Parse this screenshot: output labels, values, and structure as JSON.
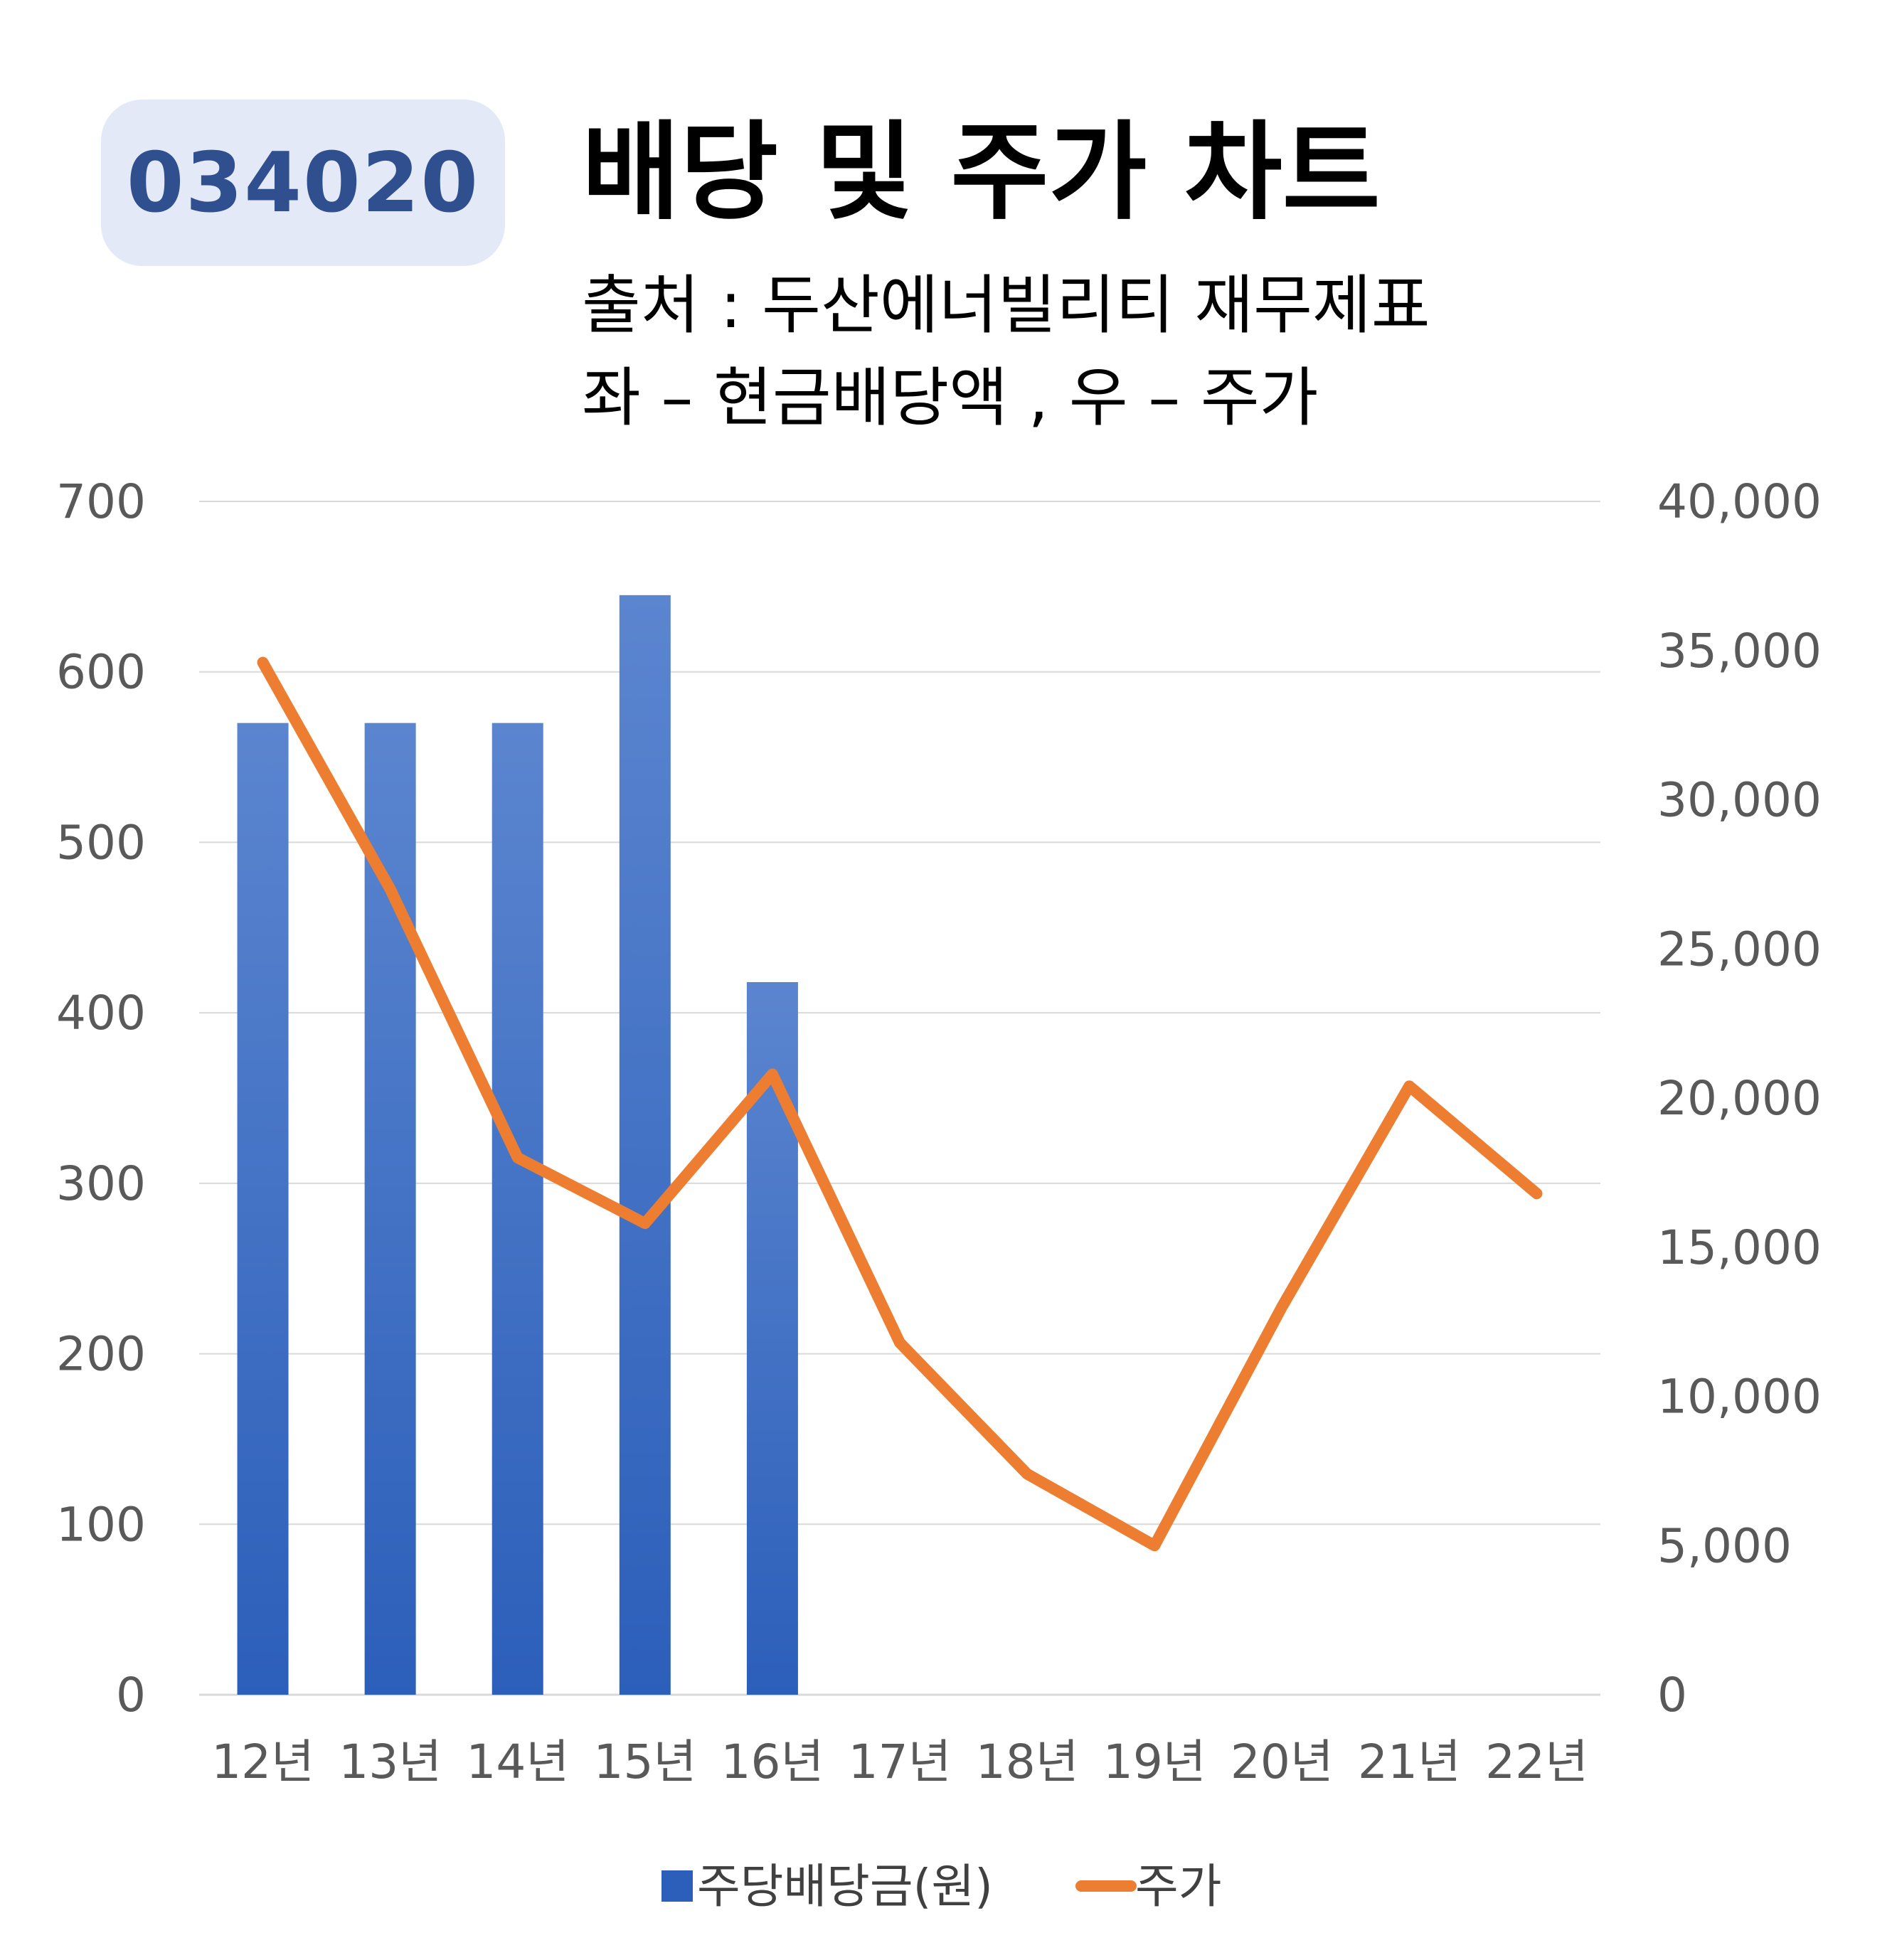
{
  "header": {
    "ticker": "034020",
    "title": "배당 및 주가 차트",
    "source_line": "출처 : 두산에너빌리티 재무제표",
    "axes_note": "좌 – 현금배당액  ,  우 – 주가"
  },
  "colors": {
    "bar_top": "#5b85cf",
    "bar_bottom": "#2c5fba",
    "line": "#ed7d31",
    "grid": "#d9d9d9",
    "badge_bg": "#e3e9f6",
    "badge_text": "#2f4f8f"
  },
  "chart_data": {
    "type": "bar",
    "categories": [
      "12년",
      "13년",
      "14년",
      "15년",
      "16년",
      "17년",
      "18년",
      "19년",
      "20년",
      "21년",
      "22년"
    ],
    "series": [
      {
        "name": "주당배당금(원)",
        "type": "bar",
        "axis": "left",
        "values": [
          570,
          570,
          570,
          645,
          418,
          null,
          null,
          null,
          null,
          null,
          null
        ]
      },
      {
        "name": "주가",
        "type": "line",
        "axis": "right",
        "values": [
          34600,
          27000,
          18000,
          15800,
          20800,
          11800,
          7400,
          5000,
          13000,
          20400,
          16800
        ]
      }
    ],
    "left_axis": {
      "ylim": [
        0,
        700
      ],
      "ticks": [
        "0",
        "100",
        "200",
        "300",
        "400",
        "500",
        "600",
        "700"
      ]
    },
    "right_axis": {
      "ylim": [
        0,
        40000
      ],
      "ticks": [
        "0",
        "5,000",
        "10,000",
        "15,000",
        "20,000",
        "25,000",
        "30,000",
        "35,000",
        "40,000"
      ]
    },
    "grid": true,
    "legend_position": "bottom"
  }
}
